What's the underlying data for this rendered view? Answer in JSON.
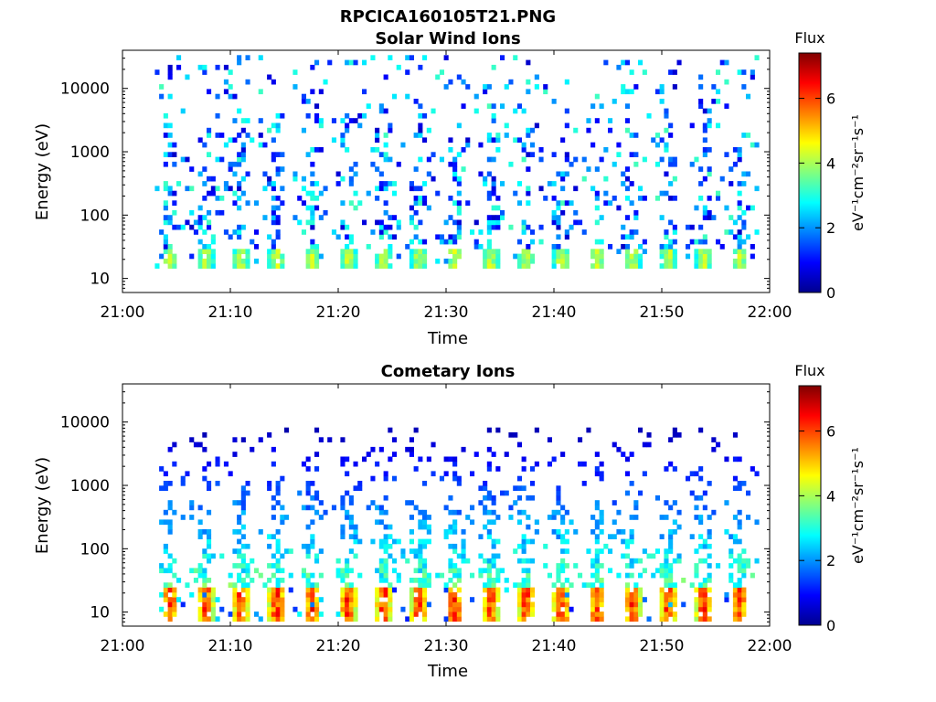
{
  "figure": {
    "title": "RPCICA160105T21.PNG"
  },
  "chart_data": [
    {
      "type": "heatmap",
      "title": "Solar Wind Ions",
      "xlabel": "Time",
      "ylabel": "Energy (eV)",
      "x_ticks": [
        "21:00",
        "21:10",
        "21:20",
        "21:30",
        "21:40",
        "21:50",
        "22:00"
      ],
      "xlim": [
        "21:00",
        "22:00"
      ],
      "y_scale": "log",
      "y_ticks": [
        "10",
        "100",
        "1000",
        "10000"
      ],
      "ylim": [
        6,
        40000
      ],
      "colorbar": {
        "label": "Flux",
        "units": "eV⁻¹cm⁻²sr⁻¹s⁻¹",
        "range": [
          0,
          7.4
        ],
        "ticks": [
          "0",
          "2",
          "4",
          "6"
        ]
      },
      "colormap": "jet",
      "data_start": "21:03",
      "data_end": "21:59",
      "cycle_minutes": 3.3,
      "band_centers_min": [
        4.2,
        7.5,
        10.8,
        14.1,
        17.4,
        20.7,
        24.0,
        27.3,
        30.6,
        33.9,
        37.2,
        40.5,
        43.8,
        47.1,
        50.4,
        53.7,
        57.0
      ],
      "peak_flux": 4.6,
      "peak_energy_eV": [
        15,
        30
      ],
      "sparse_flux_range_eV": [
        30,
        35000
      ]
    },
    {
      "type": "heatmap",
      "title": "Cometary Ions",
      "xlabel": "Time",
      "ylabel": "Energy (eV)",
      "x_ticks": [
        "21:00",
        "21:10",
        "21:20",
        "21:30",
        "21:40",
        "21:50",
        "22:00"
      ],
      "xlim": [
        "21:00",
        "22:00"
      ],
      "y_scale": "log",
      "y_ticks": [
        "10",
        "100",
        "1000",
        "10000"
      ],
      "ylim": [
        6,
        40000
      ],
      "colorbar": {
        "label": "Flux",
        "units": "eV⁻¹cm⁻²sr⁻¹s⁻¹",
        "range": [
          0,
          7.4
        ],
        "ticks": [
          "0",
          "2",
          "4",
          "6"
        ]
      },
      "colormap": "jet",
      "data_start": "21:03",
      "data_end": "21:59",
      "cycle_minutes": 3.3,
      "band_centers_min": [
        4.2,
        7.5,
        10.8,
        14.1,
        17.4,
        20.7,
        24.0,
        27.3,
        30.6,
        33.9,
        37.2,
        40.5,
        43.8,
        47.1,
        50.4,
        53.7,
        57.0
      ],
      "peak_flux": 6.7,
      "peak_energy_eV": [
        7,
        25
      ],
      "sparse_flux_range_eV": [
        25,
        8000
      ]
    }
  ]
}
